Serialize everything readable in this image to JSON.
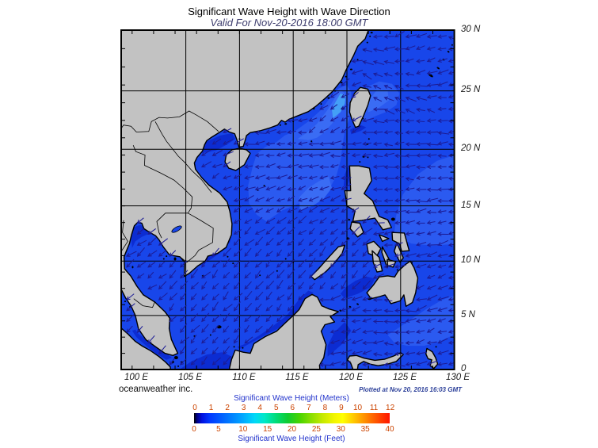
{
  "title": "Significant Wave Height with Wave Direction",
  "subtitle": "Valid For Nov-20-2016 18:00 GMT",
  "credit": "oceanweather inc.",
  "plotted_at": "Plotted at Nov 20, 2016 16:03 GMT",
  "axes": {
    "lon_labels": [
      "100 E",
      "105 E",
      "110 E",
      "115 E",
      "120 E",
      "125 E",
      "130 E"
    ],
    "lat_labels": [
      "30 N",
      "25 N",
      "20 N",
      "15 N",
      "10 N",
      "5 N",
      "0"
    ]
  },
  "colorbar": {
    "meters_label": "Significant Wave Height (Meters)",
    "feet_label": "Significant Wave Height (Feet)",
    "meters_ticks": [
      "0",
      "1",
      "2",
      "3",
      "4",
      "5",
      "6",
      "7",
      "8",
      "9",
      "10",
      "11",
      "12"
    ],
    "feet_ticks": [
      "0",
      "5",
      "10",
      "15",
      "20",
      "25",
      "30",
      "35",
      "40"
    ],
    "tick_color": "#cc4400",
    "label_color": "#2233cc",
    "gradient_stops": [
      [
        "#000000",
        0
      ],
      [
        "#000080",
        1.5
      ],
      [
        "#0010e0",
        4
      ],
      [
        "#0038ff",
        8
      ],
      [
        "#006cff",
        16
      ],
      [
        "#00a8ff",
        25
      ],
      [
        "#00d8f8",
        31
      ],
      [
        "#00e8c8",
        36
      ],
      [
        "#00dc78",
        42
      ],
      [
        "#10cc30",
        48
      ],
      [
        "#48d400",
        54
      ],
      [
        "#8cdf00",
        60
      ],
      [
        "#c8ea00",
        66
      ],
      [
        "#f4f600",
        72
      ],
      [
        "#ffff00",
        76
      ],
      [
        "#ffb000",
        84
      ],
      [
        "#ff6000",
        92
      ],
      [
        "#ff1400",
        100
      ]
    ]
  },
  "map": {
    "land_color": "#c2c2c2",
    "coast_color": "#000000",
    "sea_base": "#1846ea",
    "sea_light1": "#2b5af0",
    "sea_light2": "#3a6cf4",
    "sea_light3": "#44a0f6",
    "sea_dark1": "#0c2cd2",
    "arrow_color": "#1c1c96",
    "graticule_color": "#000000"
  }
}
